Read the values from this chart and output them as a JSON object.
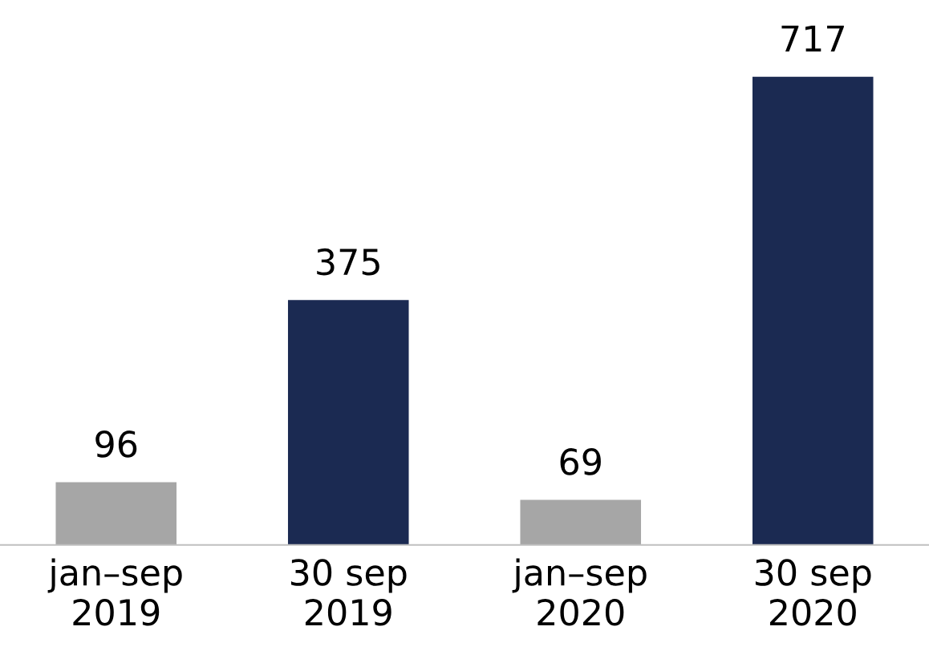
{
  "chart_data": {
    "type": "bar",
    "categories": [
      "jan–sep\n2019",
      "30 sep\n2019",
      "jan–sep\n2020",
      "30 sep\n2020"
    ],
    "values": [
      96,
      375,
      69,
      717
    ],
    "colors": [
      "#a6a6a6",
      "#1b2a52",
      "#a6a6a6",
      "#1b2a52"
    ],
    "data_labels": true,
    "grid": false,
    "legend": false,
    "tick_labels": "x"
  }
}
